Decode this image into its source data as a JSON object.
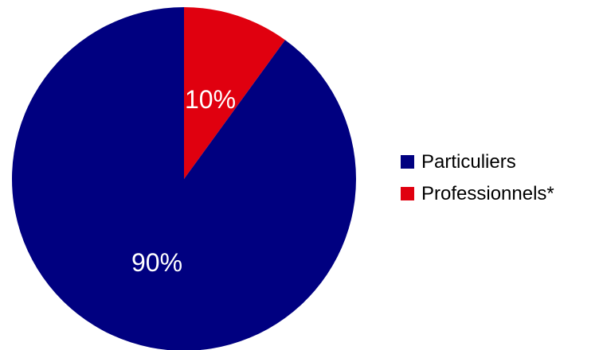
{
  "chart_data": {
    "type": "pie",
    "slices": [
      {
        "label": "Particuliers",
        "value": 90,
        "value_label": "90%",
        "color": "#000080"
      },
      {
        "label": "Professionnels*",
        "value": 10,
        "value_label": "10%",
        "color": "#e0000f"
      }
    ],
    "start_angle": "12 o'clock",
    "direction": "counterclockwise from top for Particuliers, Professionnels* to its right",
    "legend_position": "right"
  }
}
